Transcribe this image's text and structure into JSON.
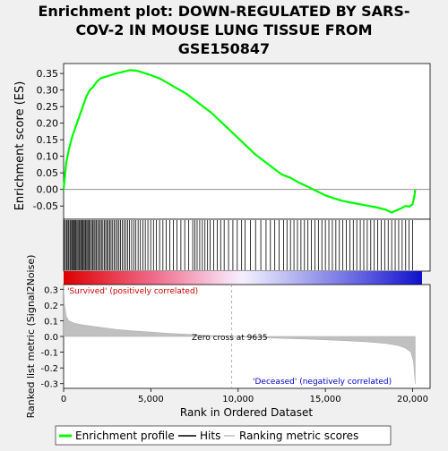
{
  "chart_data": {
    "type": "line",
    "title": "Enrichment plot: DOWN-REGULATED BY SARS-COV-2 IN MOUSE LUNG TISSUE FROM GSE150847",
    "title_lines": [
      "Enrichment plot: DOWN-REGULATED BY SARS-",
      "COV-2 IN MOUSE LUNG TISSUE FROM",
      "GSE150847"
    ],
    "es_panel": {
      "ylabel": "Enrichment score (ES)",
      "ylim": [
        -0.09,
        0.38
      ],
      "yticks": [
        -0.05,
        0.0,
        0.05,
        0.1,
        0.15,
        0.2,
        0.25,
        0.3,
        0.35
      ],
      "ytick_labels": [
        "-0.05",
        "0.00",
        "0.05",
        "0.10",
        "0.15",
        "0.20",
        "0.25",
        "0.30",
        "0.35"
      ],
      "series": [
        {
          "name": "Enrichment profile",
          "color": "#00ff00",
          "x": [
            0,
            150,
            300,
            500,
            700,
            900,
            1100,
            1300,
            1500,
            1700,
            1900,
            2100,
            2400,
            2700,
            3000,
            3400,
            3800,
            4200,
            4600,
            5000,
            5500,
            6000,
            6500,
            7000,
            7500,
            8000,
            8500,
            9000,
            9500,
            10000,
            10500,
            11000,
            11500,
            12000,
            12500,
            13000,
            13500,
            14000,
            14500,
            15000,
            15500,
            16000,
            16500,
            17000,
            17500,
            18000,
            18500,
            18800,
            19000,
            19300,
            19600,
            19800,
            20000,
            20100,
            20150
          ],
          "y": [
            0.0,
            0.08,
            0.12,
            0.16,
            0.19,
            0.22,
            0.25,
            0.28,
            0.3,
            0.31,
            0.325,
            0.335,
            0.34,
            0.345,
            0.35,
            0.355,
            0.36,
            0.358,
            0.352,
            0.345,
            0.335,
            0.32,
            0.305,
            0.29,
            0.27,
            0.25,
            0.23,
            0.205,
            0.18,
            0.155,
            0.13,
            0.105,
            0.085,
            0.065,
            0.045,
            0.035,
            0.02,
            0.008,
            -0.005,
            -0.018,
            -0.027,
            -0.035,
            -0.04,
            -0.045,
            -0.05,
            -0.055,
            -0.062,
            -0.07,
            -0.065,
            -0.058,
            -0.05,
            -0.052,
            -0.045,
            -0.02,
            0.0
          ]
        }
      ]
    },
    "hits_panel": {
      "legend_label": "Hits",
      "hit_ranks": [
        40,
        110,
        180,
        250,
        300,
        370,
        420,
        480,
        540,
        600,
        650,
        700,
        760,
        820,
        880,
        930,
        990,
        1050,
        1110,
        1170,
        1230,
        1280,
        1340,
        1400,
        1460,
        1530,
        1600,
        1670,
        1740,
        1800,
        1880,
        1950,
        2020,
        2100,
        2170,
        2250,
        2330,
        2410,
        2490,
        2560,
        2640,
        2720,
        2810,
        2900,
        2990,
        3080,
        3170,
        3260,
        3360,
        3460,
        3560,
        3670,
        3780,
        3900,
        4020,
        4140,
        4270,
        4400,
        4540,
        4680,
        4830,
        4990,
        5150,
        5320,
        5500,
        5690,
        5880,
        6080,
        6290,
        6500,
        6720,
        6940,
        7170,
        7400,
        7520,
        7650,
        7800,
        7950,
        8100,
        8250,
        8400,
        8600,
        8800,
        9000,
        9200,
        9450,
        9700,
        9950,
        10200,
        10400,
        10700,
        11000,
        11300,
        11600,
        11850,
        12100,
        12350,
        12600,
        12800,
        13000,
        13200,
        13400,
        13600,
        13800,
        14000,
        14200,
        14400,
        14600,
        14800,
        15000,
        15200,
        15400,
        15600,
        15800,
        16000,
        16200,
        16400,
        16600,
        16800,
        17000,
        17200,
        17400,
        17600,
        17800,
        18000,
        18200,
        18400,
        18600,
        18800,
        19000,
        19200,
        19400,
        19600,
        19800,
        20000
      ]
    },
    "metric_panel": {
      "ylabel": "Ranked list metric (Signal2Noise)",
      "xlabel": "Rank in Ordered Dataset",
      "ylim": [
        -0.33,
        0.33
      ],
      "yticks": [
        -0.3,
        -0.2,
        -0.1,
        0.0,
        0.1,
        0.2,
        0.3
      ],
      "ytick_labels": [
        "-0.3",
        "-0.2",
        "-0.1",
        "0.0",
        "0.1",
        "0.2",
        "0.3"
      ],
      "xlim": [
        0,
        21000
      ],
      "xticks": [
        0,
        5000,
        10000,
        15000,
        20000
      ],
      "xtick_labels": [
        "0",
        "5,000",
        "10,000",
        "15,000",
        "20,000"
      ],
      "legend_label": "Ranking metric scores",
      "zero_cross_rank": 9635,
      "zero_cross_label": "Zero cross at 9635",
      "positive_label": "'Survived' (positively correlated)",
      "negative_label": "'Deceased' (negatively correlated)",
      "metric_x": [
        0,
        50,
        150,
        300,
        600,
        1000,
        2000,
        3000,
        4000,
        5000,
        6000,
        7000,
        8000,
        9000,
        9635,
        10500,
        12000,
        14000,
        16000,
        17500,
        18500,
        19200,
        19600,
        19900,
        20050,
        20150
      ],
      "metric_y": [
        0.33,
        0.2,
        0.13,
        0.1,
        0.085,
        0.075,
        0.06,
        0.045,
        0.035,
        0.028,
        0.02,
        0.014,
        0.008,
        0.003,
        0.0,
        -0.004,
        -0.01,
        -0.017,
        -0.026,
        -0.035,
        -0.045,
        -0.058,
        -0.075,
        -0.1,
        -0.16,
        -0.3
      ]
    },
    "legend": {
      "entries": [
        "Enrichment profile",
        "Hits",
        "Ranking metric scores"
      ],
      "placement": "bottom",
      "colors": [
        "#00ff00",
        "#000000",
        "#c0c0c0"
      ]
    },
    "colors": {
      "es_line": "#00ff00",
      "positive_label": "#cc0000",
      "negative_label": "#0000cc",
      "metric_fill": "#c0c0c0"
    }
  }
}
